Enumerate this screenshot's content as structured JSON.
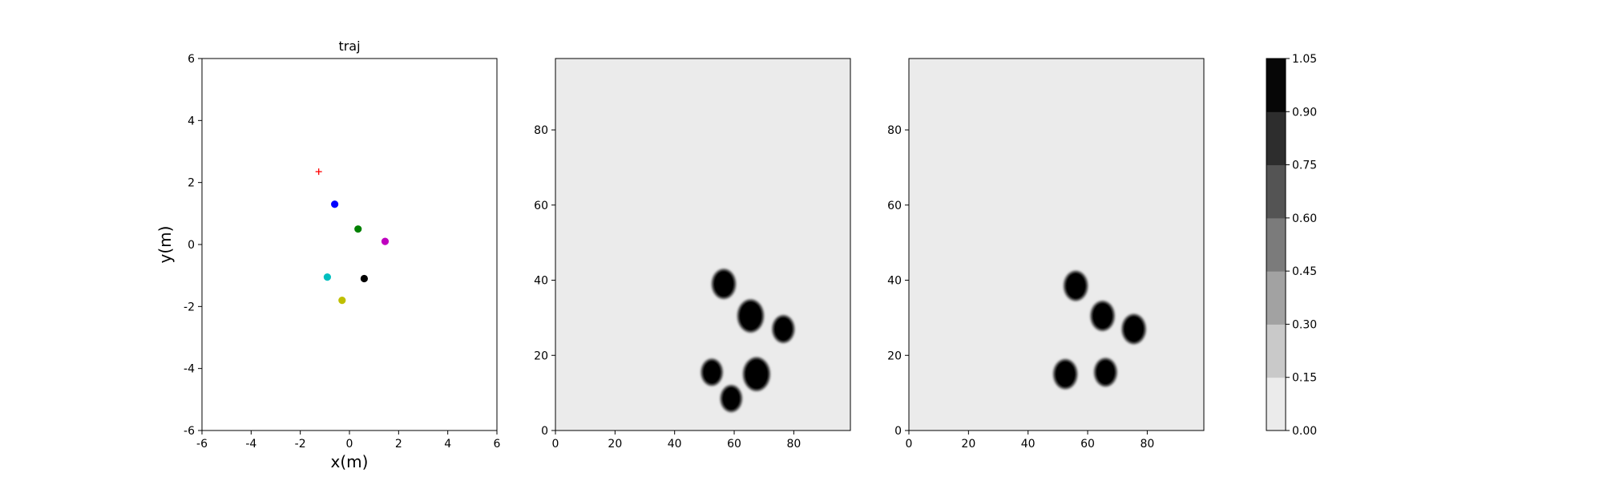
{
  "chart_data": [
    {
      "type": "scatter",
      "title": "traj",
      "xlabel": "x(m)",
      "ylabel": "y(m)",
      "xlim": [
        -6,
        6
      ],
      "ylim": [
        -6,
        6
      ],
      "xticks": [
        -6,
        -4,
        -2,
        0,
        2,
        4,
        6
      ],
      "yticks": [
        -6,
        -4,
        -2,
        0,
        2,
        4,
        6
      ],
      "grid": false,
      "series": [
        {
          "marker": "plus",
          "color": "#ff0000",
          "points": [
            [
              -1.25,
              2.35
            ]
          ]
        },
        {
          "marker": "circle",
          "color": "#0000ff",
          "points": [
            [
              -0.6,
              1.3
            ]
          ]
        },
        {
          "marker": "circle",
          "color": "#008000",
          "points": [
            [
              0.35,
              0.5
            ]
          ]
        },
        {
          "marker": "circle",
          "color": "#bf00bf",
          "points": [
            [
              1.45,
              0.1
            ]
          ]
        },
        {
          "marker": "circle",
          "color": "#00bfbf",
          "points": [
            [
              -0.9,
              -1.05
            ]
          ]
        },
        {
          "marker": "circle",
          "color": "#000000",
          "points": [
            [
              0.6,
              -1.1
            ]
          ]
        },
        {
          "marker": "circle",
          "color": "#bfbf00",
          "points": [
            [
              -0.3,
              -1.8
            ]
          ]
        }
      ]
    },
    {
      "type": "heatmap",
      "xlim": [
        0,
        99
      ],
      "ylim": [
        0,
        99
      ],
      "xticks": [
        0,
        20,
        40,
        60,
        80
      ],
      "yticks": [
        0,
        20,
        40,
        60,
        80
      ],
      "background_value": 0.0,
      "blobs": [
        {
          "x": 56.5,
          "y": 39,
          "r": 3.8,
          "value": 1.0
        },
        {
          "x": 65.5,
          "y": 30.5,
          "r": 4.2,
          "value": 1.0
        },
        {
          "x": 76.5,
          "y": 27,
          "r": 3.5,
          "value": 1.0
        },
        {
          "x": 52.5,
          "y": 15.5,
          "r": 3.4,
          "value": 1.0
        },
        {
          "x": 67.5,
          "y": 15,
          "r": 4.3,
          "value": 1.0
        },
        {
          "x": 59,
          "y": 8.5,
          "r": 3.4,
          "value": 1.0
        }
      ]
    },
    {
      "type": "heatmap",
      "xlim": [
        0,
        99
      ],
      "ylim": [
        0,
        99
      ],
      "xticks": [
        0,
        20,
        40,
        60,
        80
      ],
      "yticks": [
        0,
        20,
        40,
        60,
        80
      ],
      "background_value": 0.0,
      "blobs": [
        {
          "x": 56,
          "y": 38.5,
          "r": 3.8,
          "value": 1.0
        },
        {
          "x": 65,
          "y": 30.5,
          "r": 3.8,
          "value": 1.0
        },
        {
          "x": 75.5,
          "y": 27,
          "r": 3.8,
          "value": 1.0
        },
        {
          "x": 52.5,
          "y": 15,
          "r": 3.8,
          "value": 1.0
        },
        {
          "x": 66,
          "y": 15.5,
          "r": 3.6,
          "value": 1.0
        }
      ]
    }
  ],
  "colorbar": {
    "levels": [
      "0.00",
      "0.15",
      "0.30",
      "0.45",
      "0.60",
      "0.75",
      "0.90",
      "1.05"
    ],
    "colors": [
      "#ebebeb",
      "#c9c9c9",
      "#a2a2a2",
      "#7b7b7b",
      "#545454",
      "#2d2d2d",
      "#060606"
    ]
  }
}
